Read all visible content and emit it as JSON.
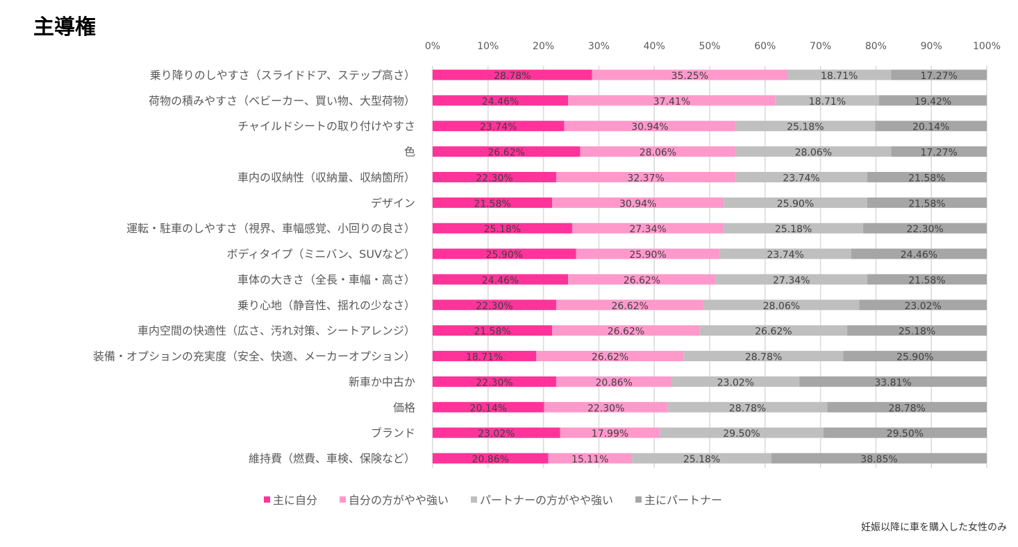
{
  "chart_data": {
    "type": "bar",
    "orientation": "horizontal",
    "stacked": "percent",
    "title": "主導権",
    "note": "妊娠以降に車を購入した女性のみ",
    "xlim": [
      0,
      100
    ],
    "xticks": [
      "0%",
      "10%",
      "20%",
      "30%",
      "40%",
      "50%",
      "60%",
      "70%",
      "80%",
      "90%",
      "100%"
    ],
    "grid": true,
    "legend_position": "bottom",
    "categories": [
      "乗り降りのしやすさ（スライドドア、ステップ高さ）",
      "荷物の積みやすさ（ベビーカー、買い物、大型荷物）",
      "チャイルドシートの取り付けやすさ",
      "色",
      "車内の収納性（収納量、収納箇所）",
      "デザイン",
      "運転・駐車のしやすさ（視界、車幅感覚、小回りの良さ）",
      "ボディタイプ（ミニバン、SUVなど）",
      "車体の大きさ（全長・車幅・高さ）",
      "乗り心地（静音性、揺れの少なさ）",
      "車内空間の快適性（広さ、汚れ対策、シートアレンジ）",
      "装備・オプションの充実度（安全、快適、メーカーオプション）",
      "新車か中古か",
      "価格",
      "ブランド",
      "維持費（燃費、車検、保険など）"
    ],
    "series": [
      {
        "name": "主に自分",
        "color": "#FF3399",
        "values": [
          28.78,
          24.46,
          23.74,
          26.62,
          22.3,
          21.58,
          25.18,
          25.9,
          24.46,
          22.3,
          21.58,
          18.71,
          22.3,
          20.14,
          23.02,
          20.86
        ]
      },
      {
        "name": "自分の方がやや強い",
        "color": "#FF99CC",
        "values": [
          35.25,
          37.41,
          30.94,
          28.06,
          32.37,
          30.94,
          27.34,
          25.9,
          26.62,
          26.62,
          26.62,
          26.62,
          20.86,
          22.3,
          17.99,
          15.11
        ]
      },
      {
        "name": "パートナーの方がやや強い",
        "color": "#BFBFBF",
        "values": [
          18.71,
          18.71,
          25.18,
          28.06,
          23.74,
          25.9,
          25.18,
          23.74,
          27.34,
          28.06,
          26.62,
          28.78,
          23.02,
          28.78,
          29.5,
          25.18
        ]
      },
      {
        "name": "主にパートナー",
        "color": "#A6A6A6",
        "values": [
          17.27,
          19.42,
          20.14,
          17.27,
          21.58,
          21.58,
          22.3,
          24.46,
          21.58,
          23.02,
          25.18,
          25.9,
          33.81,
          28.78,
          29.5,
          38.85
        ]
      }
    ]
  }
}
